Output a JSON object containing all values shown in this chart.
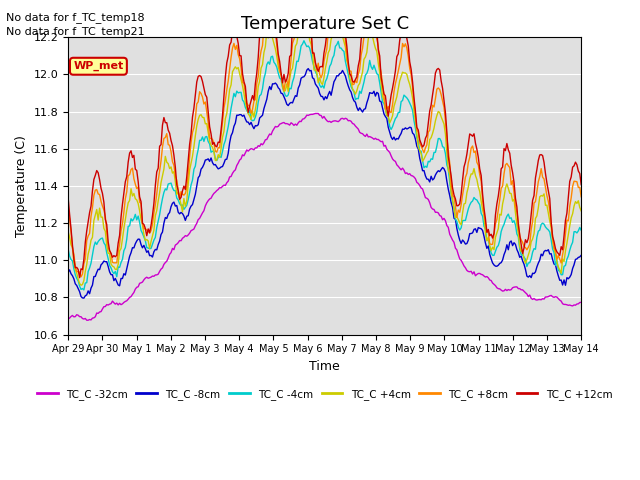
{
  "title": "Temperature Set C",
  "xlabel": "Time",
  "ylabel": "Temperature (C)",
  "ylim": [
    10.6,
    12.2
  ],
  "note_lines": [
    "No data for f_TC_temp18",
    "No data for f_TC_temp21"
  ],
  "wp_met_label": "WP_met",
  "series": [
    {
      "label": "TC_C -32cm",
      "color": "#cc00cc"
    },
    {
      "label": "TC_C -8cm",
      "color": "#0000cc"
    },
    {
      "label": "TC_C -4cm",
      "color": "#00cccc"
    },
    {
      "label": "TC_C +4cm",
      "color": "#cccc00"
    },
    {
      "label": "TC_C +8cm",
      "color": "#ff8800"
    },
    {
      "label": "TC_C +12cm",
      "color": "#cc0000"
    }
  ],
  "xtick_labels": [
    "Apr 29",
    "Apr 30",
    "May 1",
    "May 2",
    "May 3",
    "May 4",
    "May 5",
    "May 6",
    "May 7",
    "May 8",
    "May 9",
    "May 10",
    "May 11",
    "May 12",
    "May 13",
    "May 14"
  ],
  "n_days": 15,
  "plot_bg_color": "#e0e0e0",
  "linewidth": 1.0,
  "series_params": [
    [
      -32,
      0.02,
      -0.28,
      0.3,
      8
    ],
    [
      -8,
      0.08,
      -0.1,
      0.6,
      4
    ],
    [
      -4,
      0.12,
      0.0,
      0.8,
      2
    ],
    [
      4,
      0.18,
      0.08,
      1.0,
      1
    ],
    [
      8,
      0.22,
      0.16,
      1.1,
      0.5
    ],
    [
      12,
      0.26,
      0.22,
      1.2,
      0
    ]
  ]
}
